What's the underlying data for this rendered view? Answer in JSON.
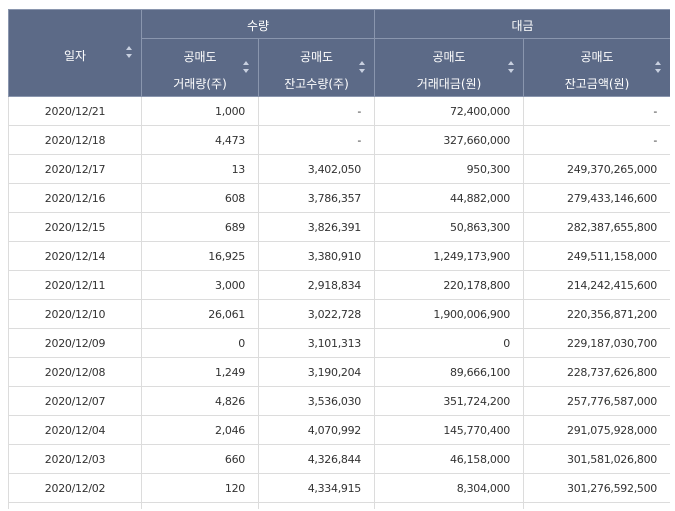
{
  "header": {
    "date_label": "일자",
    "group_quantity": "수량",
    "group_amount": "대금",
    "columns": [
      {
        "line1": "공매도",
        "line2": "거래량(주)"
      },
      {
        "line1": "공매도",
        "line2": "잔고수량(주)"
      },
      {
        "line1": "공매도",
        "line2": "거래대금(원)"
      },
      {
        "line1": "공매도",
        "line2": "잔고금액(원)"
      }
    ]
  },
  "rows": [
    [
      "2020/12/21",
      "1,000",
      "-",
      "72,400,000",
      "-"
    ],
    [
      "2020/12/18",
      "4,473",
      "-",
      "327,660,000",
      "-"
    ],
    [
      "2020/12/17",
      "13",
      "3,402,050",
      "950,300",
      "249,370,265,000"
    ],
    [
      "2020/12/16",
      "608",
      "3,786,357",
      "44,882,000",
      "279,433,146,600"
    ],
    [
      "2020/12/15",
      "689",
      "3,826,391",
      "50,863,300",
      "282,387,655,800"
    ],
    [
      "2020/12/14",
      "16,925",
      "3,380,910",
      "1,249,173,900",
      "249,511,158,000"
    ],
    [
      "2020/12/11",
      "3,000",
      "2,918,834",
      "220,178,800",
      "214,242,415,600"
    ],
    [
      "2020/12/10",
      "26,061",
      "3,022,728",
      "1,900,006,900",
      "220,356,871,200"
    ],
    [
      "2020/12/09",
      "0",
      "3,101,313",
      "0",
      "229,187,030,700"
    ],
    [
      "2020/12/08",
      "1,249",
      "3,190,204",
      "89,666,100",
      "228,737,626,800"
    ],
    [
      "2020/12/07",
      "4,826",
      "3,536,030",
      "351,724,200",
      "257,776,587,000"
    ],
    [
      "2020/12/04",
      "2,046",
      "4,070,992",
      "145,770,400",
      "291,075,928,000"
    ],
    [
      "2020/12/03",
      "660",
      "4,326,844",
      "46,158,000",
      "301,581,026,800"
    ],
    [
      "2020/12/02",
      "120",
      "4,334,915",
      "8,304,000",
      "301,276,592,500"
    ],
    [
      "",
      "",
      "",
      "",
      ""
    ]
  ]
}
